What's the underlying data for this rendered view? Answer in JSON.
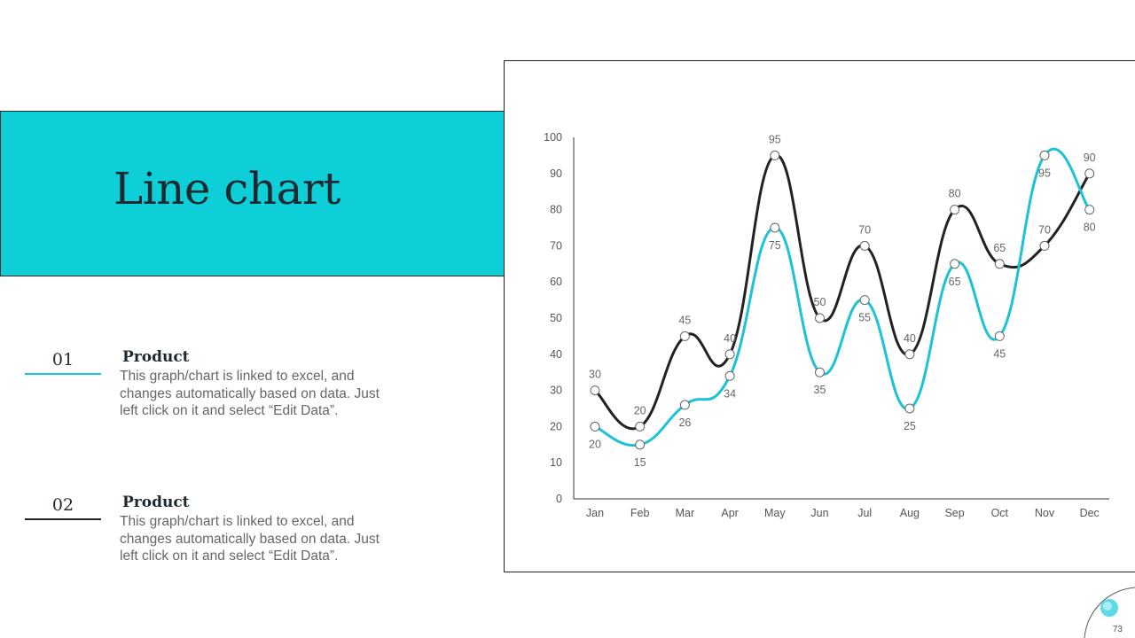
{
  "page": {
    "title": "Line chart",
    "page_number": "73",
    "accent_color": "#0ECED8",
    "dark_color": "#222222"
  },
  "items": [
    {
      "number": "01",
      "heading": "Product",
      "body": "This graph/chart is linked to excel, and changes automatically based on data. Just left click on it and select “Edit Data”."
    },
    {
      "number": "02",
      "heading": "Product",
      "body": "This graph/chart is linked to excel, and changes automatically based on data. Just left click on it and select “Edit Data”."
    }
  ],
  "chart_data": {
    "type": "line",
    "title": "",
    "xlabel": "",
    "ylabel": "",
    "categories": [
      "Jan",
      "Feb",
      "Mar",
      "Apr",
      "May",
      "Jun",
      "Jul",
      "Aug",
      "Sep",
      "Oct",
      "Nov",
      "Dec"
    ],
    "ylim": [
      0,
      100
    ],
    "yticks": [
      0,
      10,
      20,
      30,
      40,
      50,
      60,
      70,
      80,
      90,
      100
    ],
    "grid": false,
    "smooth": true,
    "series": [
      {
        "color": "#222222",
        "values": [
          30,
          20,
          45,
          40,
          95,
          50,
          70,
          40,
          80,
          65,
          70,
          90
        ],
        "label_positions": [
          "above",
          "above",
          "above",
          "above",
          "above",
          "above",
          "above",
          "above",
          "above",
          "above",
          "above",
          "above"
        ]
      },
      {
        "color": "#1BC3D5",
        "values": [
          20,
          15,
          26,
          34,
          75,
          35,
          55,
          25,
          65,
          45,
          95,
          80
        ],
        "label_positions": [
          "below",
          "below",
          "below",
          "below",
          "below",
          "below",
          "below",
          "below",
          "below",
          "below",
          "below",
          "below"
        ]
      }
    ]
  }
}
